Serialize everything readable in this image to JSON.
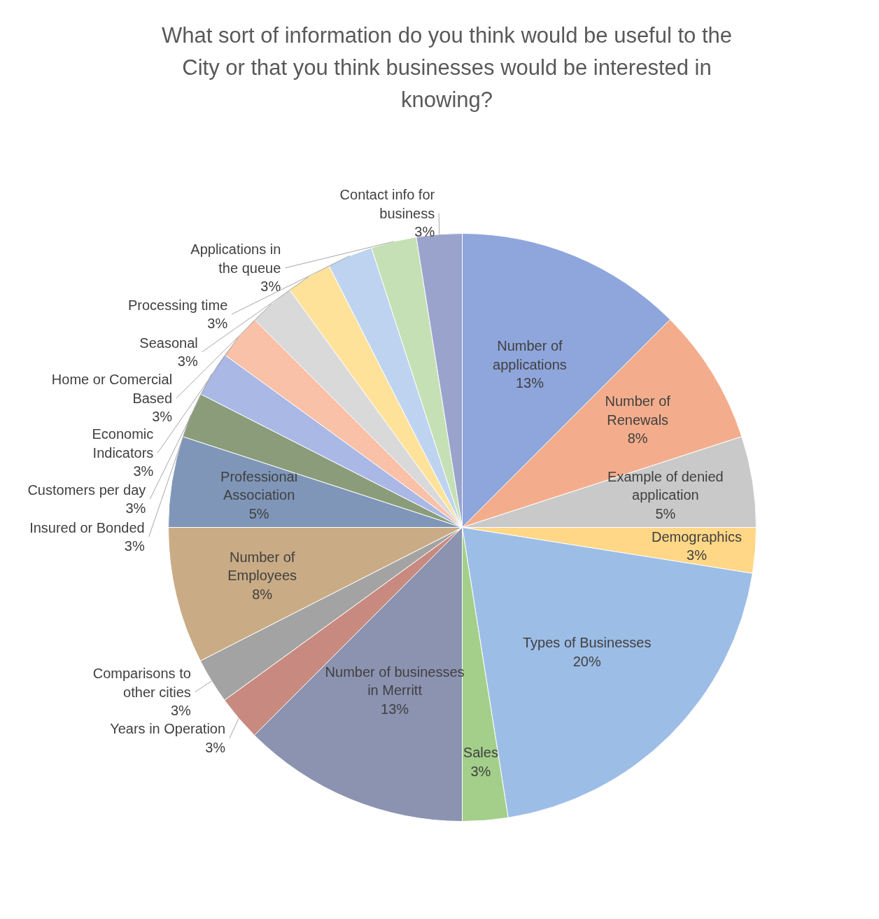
{
  "chart_data": {
    "type": "pie",
    "title": "What sort of information do you think would be useful to the City or that you think businesses would be interested in knowing?",
    "categories": [
      "Number of applications",
      "Number of Renewals",
      "Example of denied application",
      "Demographics",
      "Types of Businesses",
      "Sales",
      "Number of businesses in Merritt",
      "Years in Operation",
      "Comparisons to other cities",
      "Number of Employees",
      "Professional Association",
      "Insured or Bonded",
      "Customers per day",
      "Economic Indicators",
      "Home or Comercial Based",
      "Seasonal",
      "Processing time",
      "Applications in the queue",
      "Contact info for business"
    ],
    "values": [
      12.5,
      7.5,
      5,
      2.5,
      20,
      2.5,
      12.5,
      2.5,
      2.5,
      7.5,
      5,
      2.5,
      2.5,
      2.5,
      2.5,
      2.5,
      2.5,
      2.5,
      2.5
    ],
    "value_labels": [
      "13%",
      "8%",
      "5%",
      "3%",
      "20%",
      "3%",
      "13%",
      "3%",
      "3%",
      "8%",
      "5%",
      "3%",
      "3%",
      "3%",
      "3%",
      "3%",
      "3%",
      "3%",
      "3%"
    ],
    "colors": [
      "#8fa6dc",
      "#f4ad8c",
      "#c9c9c9",
      "#ffd786",
      "#9cbde6",
      "#a3cf8a",
      "#8b93b0",
      "#c88a80",
      "#a3a3a3",
      "#c9ab85",
      "#7f96b8",
      "#8a9c7a",
      "#aab8e6",
      "#f8c1a8",
      "#d9d9d9",
      "#ffe29a",
      "#bed3ef",
      "#c5e0b4",
      "#9aa3cc"
    ]
  }
}
